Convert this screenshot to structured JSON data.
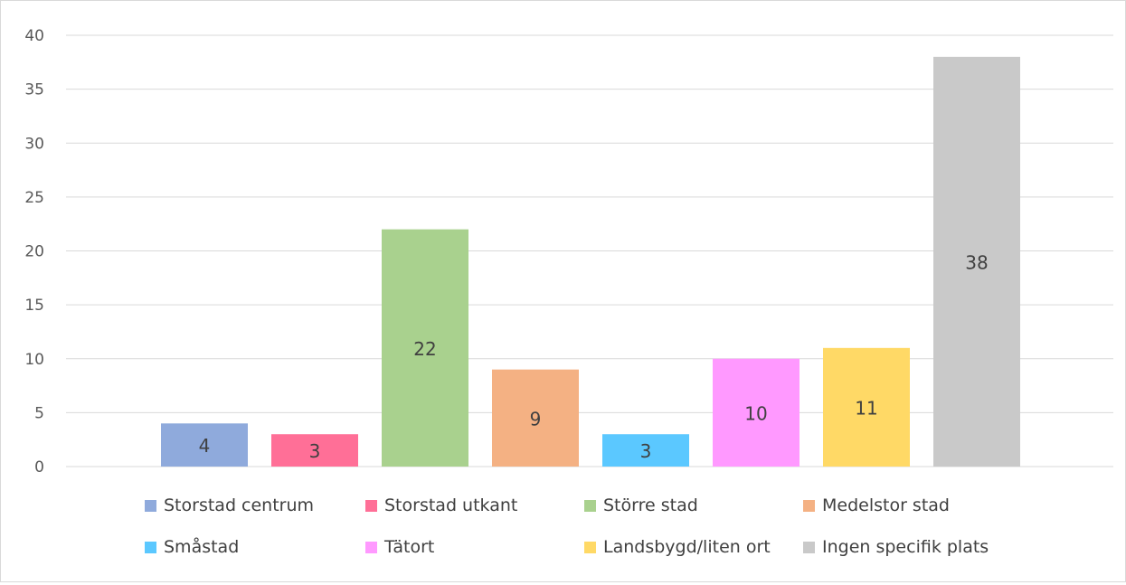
{
  "chart_data": {
    "type": "bar",
    "categories": [
      "Storstad centrum",
      "Storstad utkant",
      "Större stad",
      "Medelstor stad",
      "Småstad",
      "Tätort",
      "Landsbygd/liten ort",
      "Ingen specifik plats"
    ],
    "values": [
      4,
      3,
      22,
      9,
      3,
      10,
      11,
      38
    ],
    "colors": [
      "#8faadc",
      "#ff6f97",
      "#a9d18e",
      "#f4b183",
      "#5bc8ff",
      "#ff99ff",
      "#ffd966",
      "#c9c9c9"
    ],
    "ylim": [
      0,
      40
    ],
    "yticks": [
      "0",
      "5",
      "10",
      "15",
      "20",
      "25",
      "30",
      "35",
      "40"
    ],
    "grid": true,
    "legend": "bottom",
    "title": "",
    "xlabel": "",
    "ylabel": ""
  }
}
